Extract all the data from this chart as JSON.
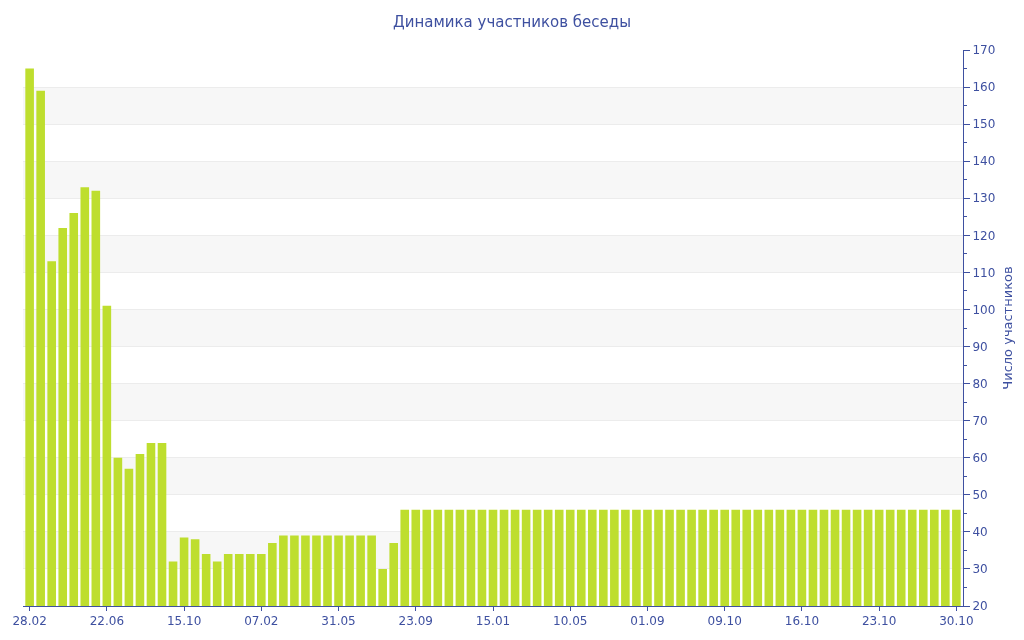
{
  "chart_data": {
    "type": "bar",
    "title": "Динамика участников беседы",
    "ylabel": "Число участников",
    "categories": [
      "28.02",
      null,
      null,
      null,
      null,
      null,
      null,
      "22.06",
      null,
      null,
      null,
      null,
      null,
      null,
      "15.10",
      null,
      null,
      null,
      null,
      null,
      null,
      "07.02",
      null,
      null,
      null,
      null,
      null,
      null,
      "31.05",
      null,
      null,
      null,
      null,
      null,
      null,
      "23.09",
      null,
      null,
      null,
      null,
      null,
      null,
      "15.01",
      null,
      null,
      null,
      null,
      null,
      null,
      "10.05",
      null,
      null,
      null,
      null,
      null,
      null,
      "01.09",
      null,
      null,
      null,
      null,
      null,
      null,
      "09.10",
      null,
      null,
      null,
      null,
      null,
      null,
      "16.10",
      null,
      null,
      null,
      null,
      null,
      null,
      "23.10",
      null,
      null,
      null,
      null,
      null,
      null,
      "30.10"
    ],
    "values": [
      165,
      159,
      113,
      122,
      126,
      133,
      132,
      101,
      60,
      57,
      61,
      64,
      64,
      32,
      38.5,
      38,
      34,
      32,
      34,
      34,
      34,
      34,
      37,
      39,
      39,
      39,
      39,
      39,
      39,
      39,
      39,
      39,
      30,
      37,
      46,
      46,
      46,
      46,
      46,
      46,
      46,
      46,
      46,
      46,
      46,
      46,
      46,
      46,
      46,
      46,
      46,
      46,
      46,
      46,
      46,
      46,
      46,
      46,
      46,
      46,
      46,
      46,
      46,
      46,
      46,
      46,
      46,
      46,
      46,
      46,
      46,
      46,
      46,
      46,
      46,
      46,
      46,
      46,
      46,
      46,
      46,
      46,
      46,
      46,
      46
    ],
    "color": "#bede2e",
    "ylim": [
      20,
      170
    ],
    "yticks": [
      20,
      30,
      40,
      50,
      60,
      70,
      80,
      90,
      100,
      110,
      120,
      130,
      140,
      150,
      160,
      170
    ],
    "grid": "y"
  }
}
